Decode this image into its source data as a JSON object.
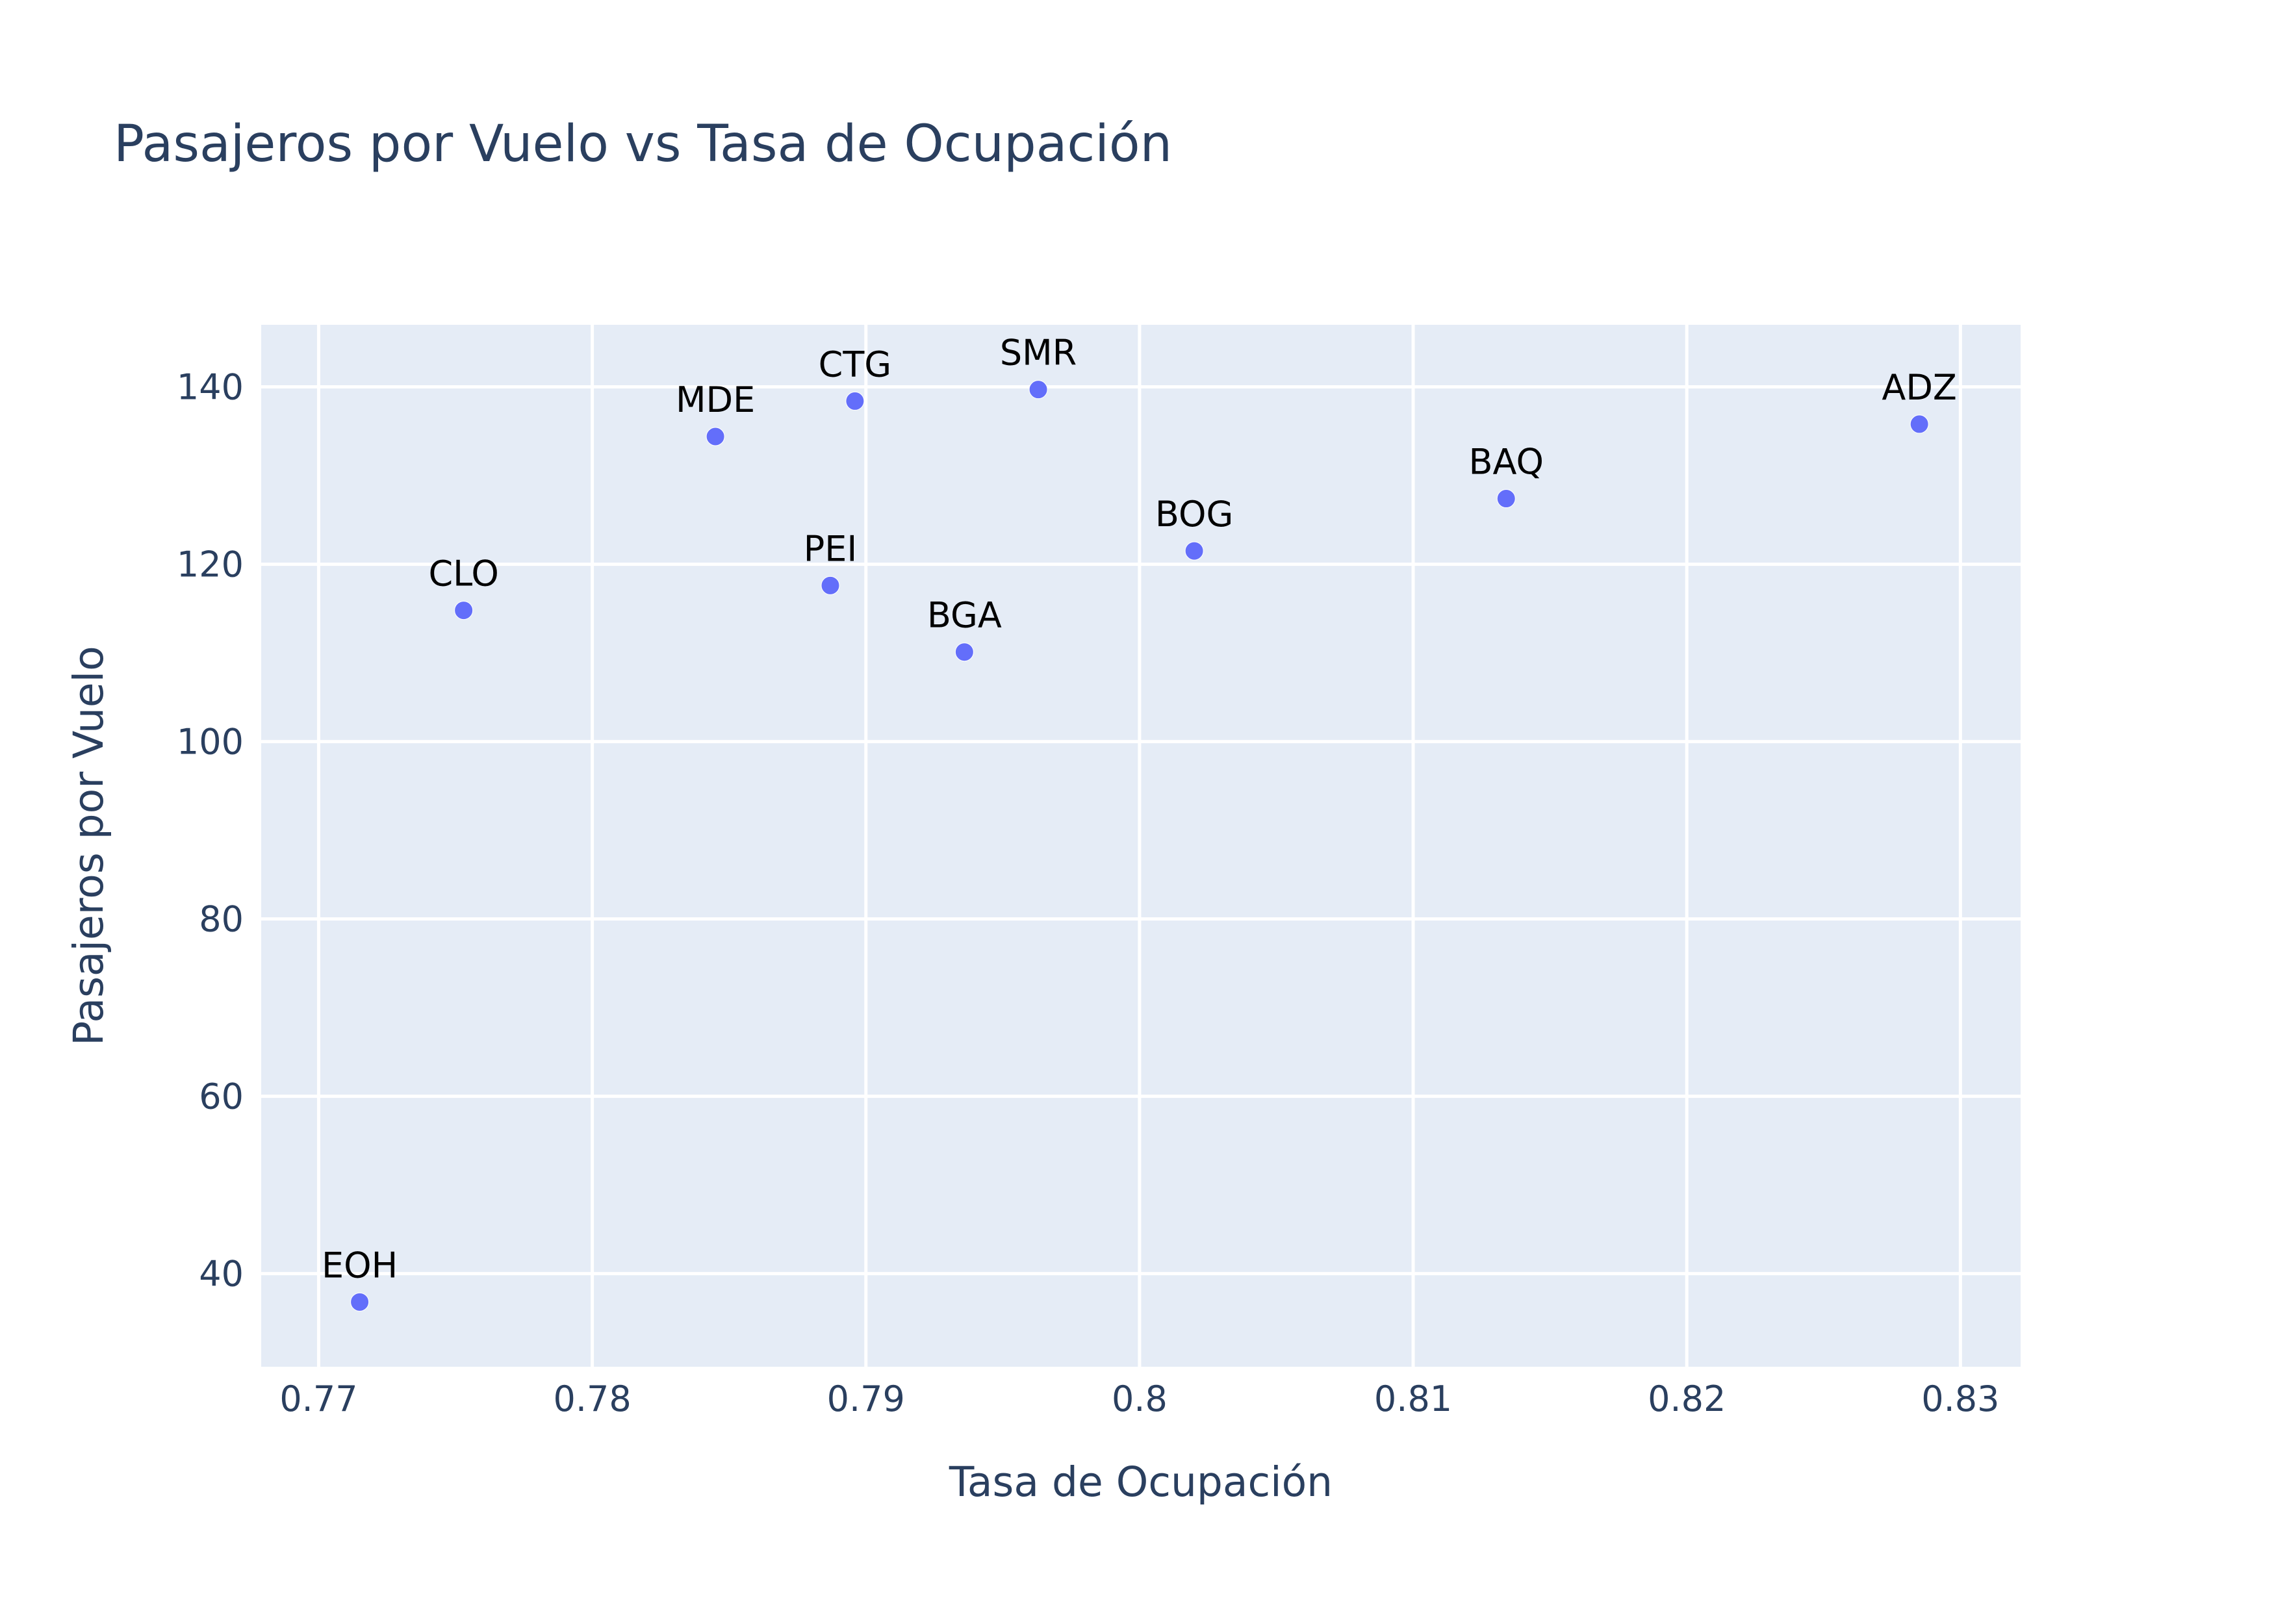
{
  "chart_data": {
    "type": "scatter",
    "title": "Pasajeros por Vuelo vs Tasa de Ocupación",
    "xlabel": "Tasa de Ocupación",
    "ylabel": "Pasajeros por Vuelo",
    "xlim": [
      0.7679,
      0.8322
    ],
    "ylim": [
      29.5,
      147
    ],
    "x_ticks": [
      0.77,
      0.78,
      0.79,
      0.8,
      0.81,
      0.82,
      0.83
    ],
    "x_tick_labels": [
      "0.77",
      "0.78",
      "0.79",
      "0.8",
      "0.81",
      "0.82",
      "0.83"
    ],
    "y_ticks": [
      40,
      60,
      80,
      100,
      120,
      140
    ],
    "y_tick_labels": [
      "40",
      "60",
      "80",
      "100",
      "120",
      "140"
    ],
    "grid": true,
    "colors": {
      "marker": "#636efa",
      "plot_background": "#e5ecf6",
      "grid": "#ffffff",
      "text": "#2a3f5f",
      "point_label": "#000000"
    },
    "series": [
      {
        "points": [
          {
            "label": "EOH",
            "x": 0.7715,
            "y": 36.8
          },
          {
            "label": "CLO",
            "x": 0.7753,
            "y": 114.8
          },
          {
            "label": "MDE",
            "x": 0.7845,
            "y": 134.4
          },
          {
            "label": "PEI",
            "x": 0.7887,
            "y": 117.6
          },
          {
            "label": "CTG",
            "x": 0.7896,
            "y": 138.4
          },
          {
            "label": "BGA",
            "x": 0.7936,
            "y": 110.1
          },
          {
            "label": "SMR",
            "x": 0.7963,
            "y": 139.7
          },
          {
            "label": "BOG",
            "x": 0.802,
            "y": 121.5
          },
          {
            "label": "BAQ",
            "x": 0.8134,
            "y": 127.4
          },
          {
            "label": "ADZ",
            "x": 0.8285,
            "y": 135.8
          }
        ]
      }
    ]
  }
}
